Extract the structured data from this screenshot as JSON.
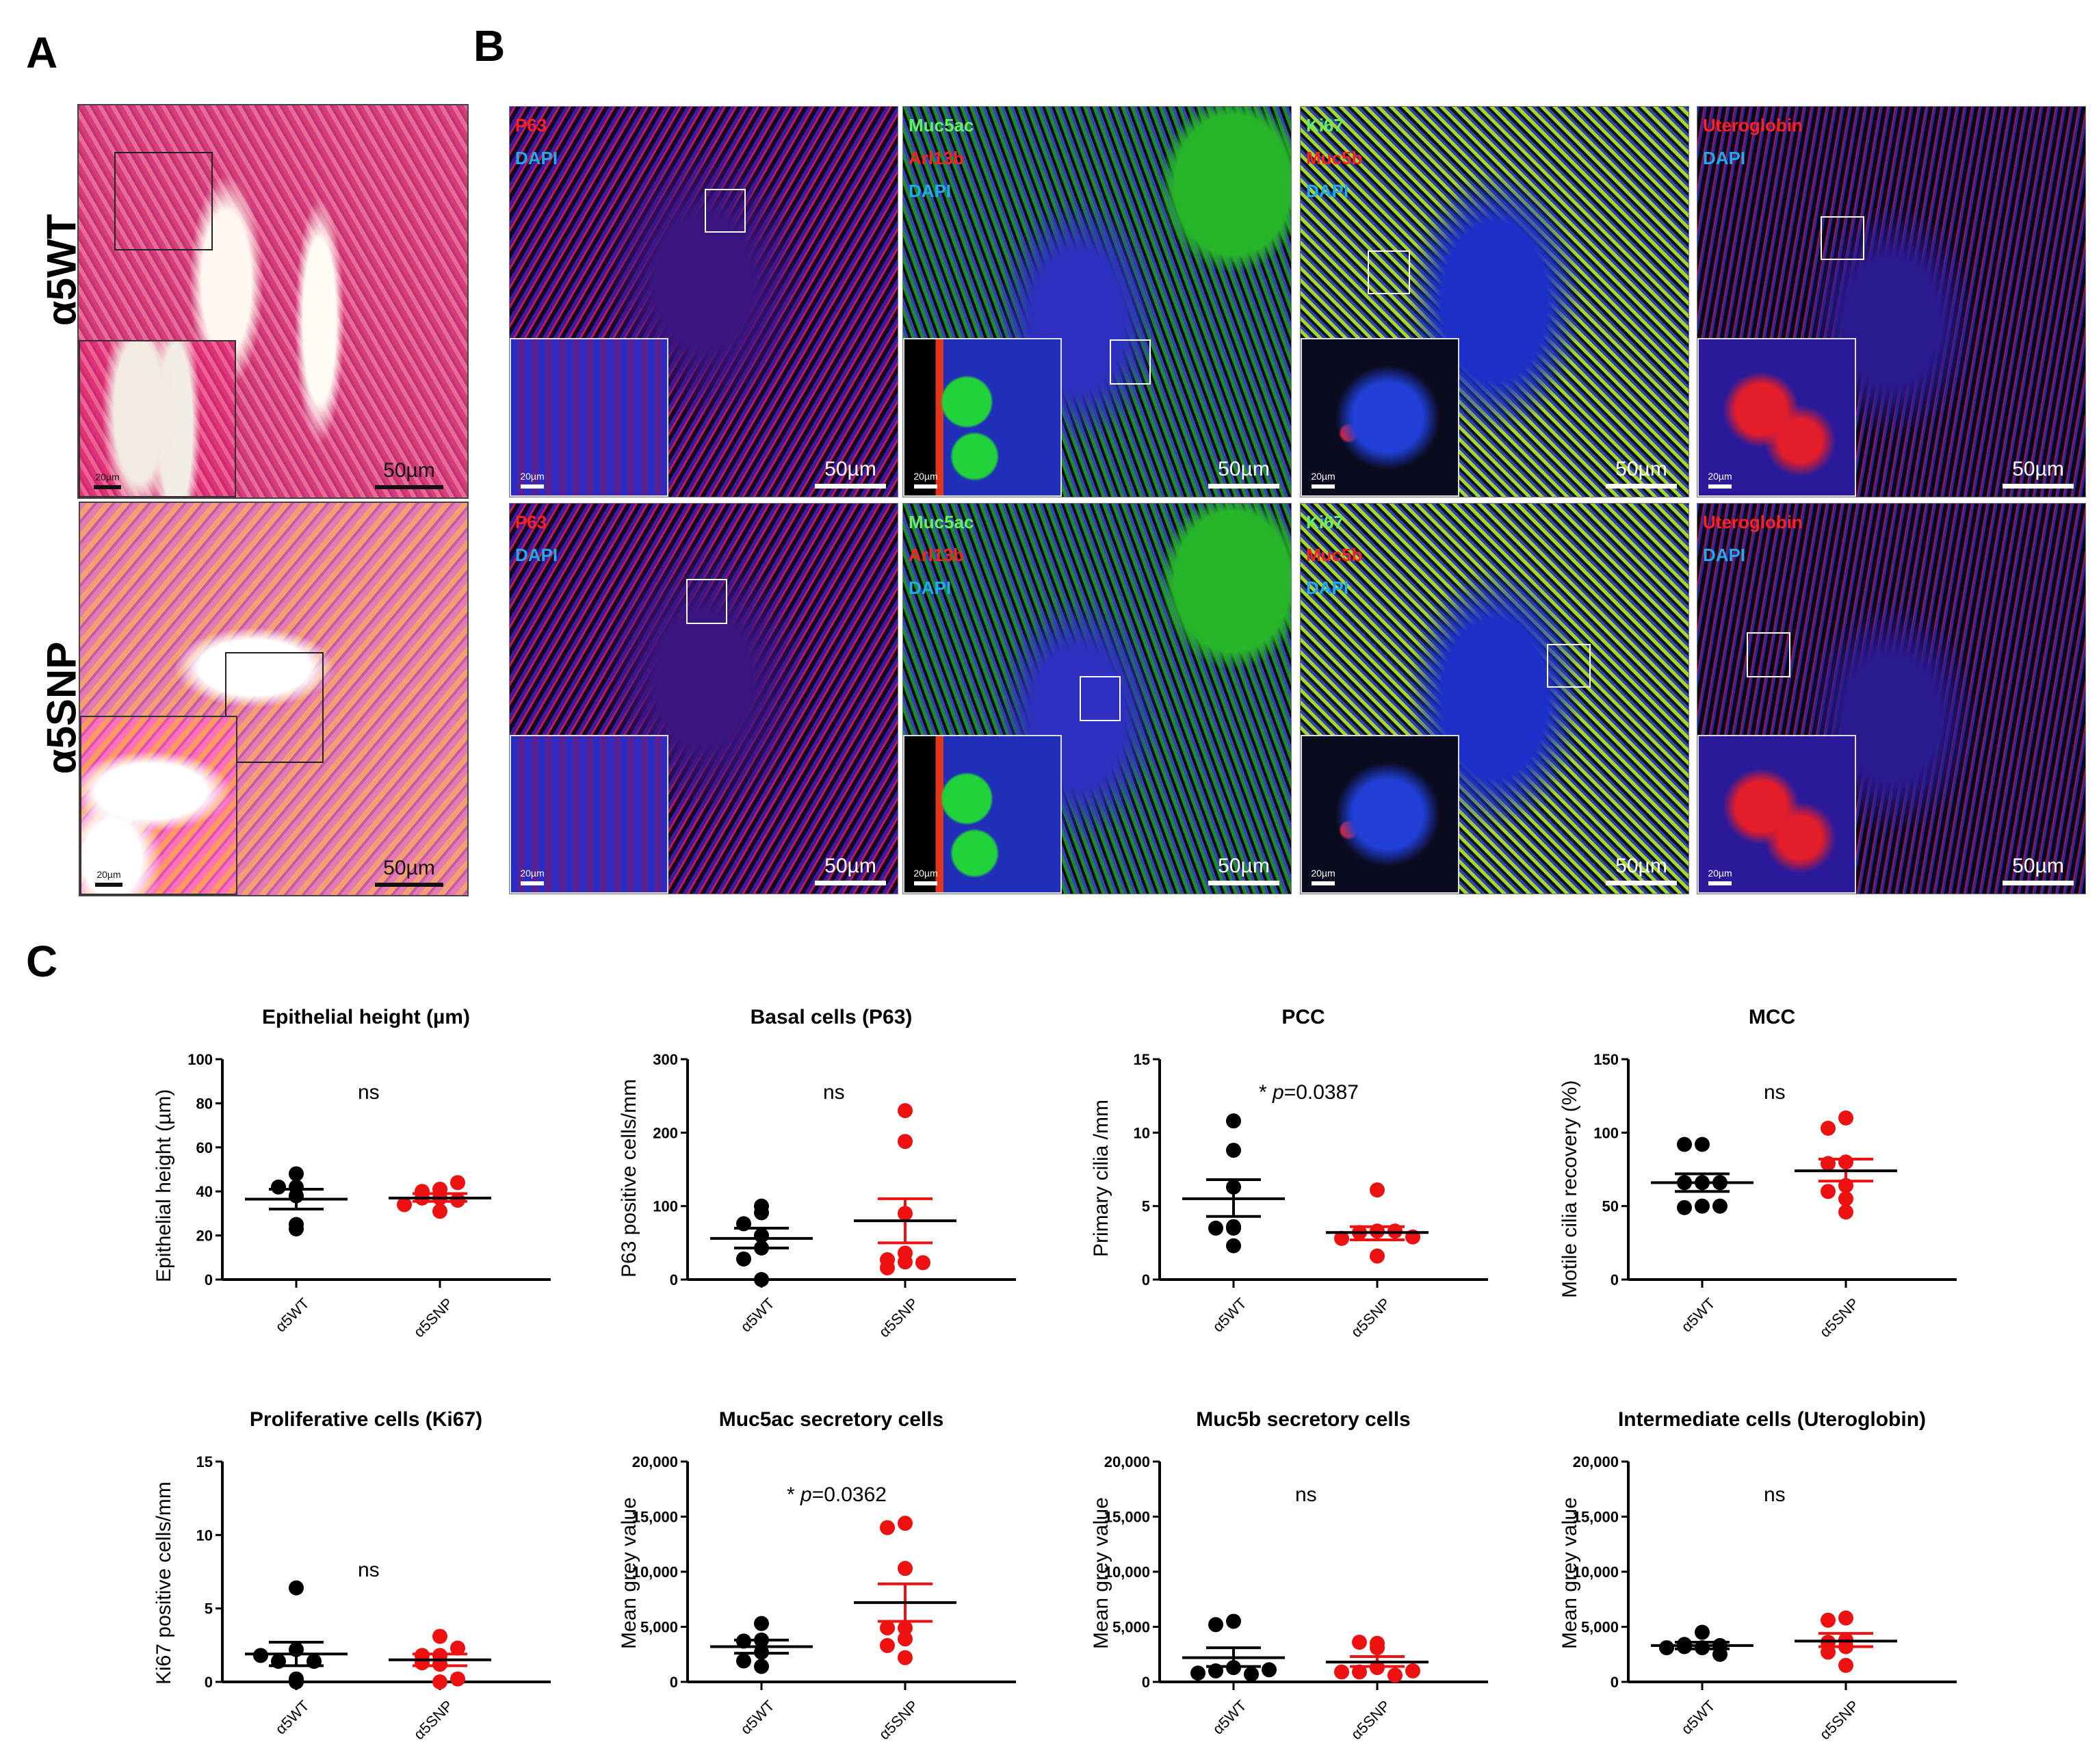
{
  "panels": {
    "A": {
      "letter": "A",
      "rows": [
        {
          "label": "α5WT",
          "scale_small": "20µm",
          "scale_large": "50µm"
        },
        {
          "label": "α5SNP",
          "scale_small": "20µm",
          "scale_large": "50µm"
        }
      ]
    },
    "B": {
      "letter": "B",
      "columns": [
        {
          "key": "p63",
          "stains": [
            {
              "text": "P63",
              "color": "#ff2020"
            },
            {
              "text": "DAPI",
              "color": "#22aaee"
            }
          ]
        },
        {
          "key": "muc5ac",
          "stains": [
            {
              "text": "Muc5ac",
              "color": "#66ee66"
            },
            {
              "text": "Arl13b",
              "color": "#ff2020"
            },
            {
              "text": "DAPI",
              "color": "#22aaee"
            }
          ]
        },
        {
          "key": "ki67",
          "stains": [
            {
              "text": "Ki67",
              "color": "#66ee66"
            },
            {
              "text": "Muc5b",
              "color": "#ff2020"
            },
            {
              "text": "DAPI",
              "color": "#22aaee"
            }
          ]
        },
        {
          "key": "utero",
          "stains": [
            {
              "text": "Uteroglobin",
              "color": "#ff2020"
            },
            {
              "text": "DAPI",
              "color": "#22aaee"
            }
          ]
        }
      ],
      "scale_small": "20µm",
      "scale_large": "50µm"
    },
    "C": {
      "letter": "C"
    }
  },
  "colors": {
    "wt": "#000000",
    "snp": "#ee1111"
  },
  "chart_data": [
    {
      "type": "scatter",
      "title": "Epithelial height (µm)",
      "xlabel": "",
      "ylabel": "Epithelial height (µm)",
      "categories": [
        "α5WT",
        "α5SNP"
      ],
      "ylim": [
        0,
        100
      ],
      "yticks": [
        "0",
        "20",
        "40",
        "60",
        "80",
        "100"
      ],
      "annotation": "ns",
      "series": [
        {
          "name": "α5WT",
          "values": [
            48,
            42,
            42,
            38,
            23,
            25
          ],
          "mean": 36.5,
          "sem_low": 32,
          "sem_high": 41
        },
        {
          "name": "α5SNP",
          "values": [
            37,
            41,
            40,
            44,
            37,
            36,
            31,
            34
          ],
          "mean": 37,
          "sem_low": 35.5,
          "sem_high": 39
        }
      ]
    },
    {
      "type": "scatter",
      "title": "Basal cells (P63)",
      "xlabel": "",
      "ylabel": "P63 positive cells/mm",
      "categories": [
        "α5WT",
        "α5SNP"
      ],
      "ylim": [
        0,
        300
      ],
      "yticks": [
        "0",
        "100",
        "200",
        "300"
      ],
      "annotation": "ns",
      "series": [
        {
          "name": "α5WT",
          "values": [
            100,
            91,
            76,
            60,
            43,
            28,
            0
          ],
          "mean": 56,
          "sem_low": 43,
          "sem_high": 70
        },
        {
          "name": "α5SNP",
          "values": [
            230,
            188,
            90,
            36,
            24,
            16,
            23,
            27
          ],
          "mean": 80,
          "sem_low": 50,
          "sem_high": 110
        }
      ]
    },
    {
      "type": "scatter",
      "title": "PCC",
      "xlabel": "",
      "ylabel": "Primary cilia /mm",
      "categories": [
        "α5WT",
        "α5SNP"
      ],
      "ylim": [
        0,
        15
      ],
      "yticks": [
        "0",
        "5",
        "10",
        "15"
      ],
      "annotation": "* p=0.0387",
      "series": [
        {
          "name": "α5WT",
          "values": [
            10.8,
            8.8,
            6.3,
            3.5,
            3.5,
            3.6,
            2.3
          ],
          "mean": 5.5,
          "sem_low": 4.3,
          "sem_high": 6.8
        },
        {
          "name": "α5SNP",
          "values": [
            6.1,
            3.3,
            3.2,
            3.3,
            2.8,
            2.9,
            1.6
          ],
          "mean": 3.2,
          "sem_low": 2.7,
          "sem_high": 3.6
        }
      ]
    },
    {
      "type": "scatter",
      "title": "MCC",
      "xlabel": "",
      "ylabel": "Motile cilia recovery (%)",
      "categories": [
        "α5WT",
        "α5SNP"
      ],
      "ylim": [
        0,
        150
      ],
      "yticks": [
        "0",
        "50",
        "100",
        "150"
      ],
      "annotation": "ns",
      "series": [
        {
          "name": "α5WT",
          "values": [
            92,
            92,
            66,
            66,
            66,
            50,
            49,
            50
          ],
          "mean": 66,
          "sem_low": 60,
          "sem_high": 72
        },
        {
          "name": "α5SNP",
          "values": [
            110,
            103,
            80,
            79,
            64,
            60,
            55,
            46
          ],
          "mean": 74,
          "sem_low": 67,
          "sem_high": 82
        }
      ]
    },
    {
      "type": "scatter",
      "title": "Proliferative cells (Ki67)",
      "xlabel": "",
      "ylabel": "Ki67 positive cells/mm",
      "categories": [
        "α5WT",
        "α5SNP"
      ],
      "ylim": [
        0,
        15
      ],
      "yticks": [
        "0",
        "5",
        "10",
        "15"
      ],
      "annotation": "ns",
      "series": [
        {
          "name": "α5WT",
          "values": [
            6.4,
            2.2,
            1.4,
            1.4,
            1.8,
            0,
            0.2
          ],
          "mean": 1.9,
          "sem_low": 1.1,
          "sem_high": 2.7
        },
        {
          "name": "α5SNP",
          "values": [
            3.1,
            1.8,
            1.8,
            2.3,
            1.2,
            1.3,
            0,
            0.2
          ],
          "mean": 1.5,
          "sem_low": 1.1,
          "sem_high": 1.9
        }
      ]
    },
    {
      "type": "scatter",
      "title": "Muc5ac secretory cells",
      "xlabel": "",
      "ylabel": "Mean grey value",
      "categories": [
        "α5WT",
        "α5SNP"
      ],
      "ylim": [
        0,
        20000
      ],
      "yticks": [
        "0",
        "5,000",
        "10,000",
        "15,000",
        "20,000"
      ],
      "annotation": "* p=0.0362",
      "series": [
        {
          "name": "α5WT",
          "values": [
            5300,
            3800,
            3700,
            2700,
            1900,
            1400
          ],
          "mean": 3200,
          "sem_low": 2600,
          "sem_high": 3800
        },
        {
          "name": "α5SNP",
          "values": [
            14400,
            14000,
            10300,
            4900,
            4900,
            3900,
            3300,
            2200
          ],
          "mean": 7200,
          "sem_low": 5500,
          "sem_high": 8900
        }
      ]
    },
    {
      "type": "scatter",
      "title": "Muc5b secretory cells",
      "xlabel": "",
      "ylabel": "Mean grey value",
      "categories": [
        "α5WT",
        "α5SNP"
      ],
      "ylim": [
        0,
        20000
      ],
      "yticks": [
        "0",
        "5,000",
        "10,000",
        "15,000",
        "20,000"
      ],
      "annotation": "ns",
      "series": [
        {
          "name": "α5WT",
          "values": [
            5500,
            5200,
            1300,
            1000,
            700,
            800,
            1100
          ],
          "mean": 2200,
          "sem_low": 1400,
          "sem_high": 3100
        },
        {
          "name": "α5SNP",
          "values": [
            3500,
            3100,
            3600,
            1300,
            900,
            600,
            900,
            1000
          ],
          "mean": 1800,
          "sem_low": 1400,
          "sem_high": 2300
        }
      ]
    },
    {
      "type": "scatter",
      "title": "Intermediate cells (Uteroglobin)",
      "xlabel": "",
      "ylabel": "Mean grey value",
      "categories": [
        "α5WT",
        "α5SNP"
      ],
      "ylim": [
        0,
        20000
      ],
      "yticks": [
        "0",
        "5,000",
        "10,000",
        "15,000",
        "20,000"
      ],
      "annotation": "ns",
      "series": [
        {
          "name": "α5WT",
          "values": [
            4500,
            3400,
            3100,
            3200,
            2500,
            3100,
            3300
          ],
          "mean": 3300,
          "sem_low": 3000,
          "sem_high": 3600
        },
        {
          "name": "α5SNP",
          "values": [
            5800,
            5600,
            3800,
            3600,
            3200,
            2700,
            1500
          ],
          "mean": 3700,
          "sem_low": 3200,
          "sem_high": 4400
        }
      ]
    }
  ]
}
